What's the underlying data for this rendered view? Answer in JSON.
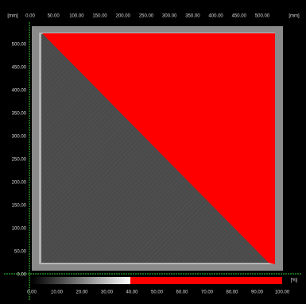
{
  "top_axis": {
    "unit_left": "[mm]",
    "unit_right": "[mm]",
    "ticks": [
      "0.00",
      "50.00",
      "100.00",
      "150.00",
      "200.00",
      "250.00",
      "300.00",
      "350.00",
      "400.00",
      "450.00",
      "500.00"
    ]
  },
  "left_axis": {
    "ticks": [
      "500.00",
      "450.00",
      "400.00",
      "350.00",
      "300.00",
      "250.00",
      "200.00",
      "150.00",
      "100.00",
      "50.00",
      "0.00"
    ]
  },
  "colorbar": {
    "unit": "[%]",
    "ticks": [
      "0.00",
      "10.00",
      "20.00",
      "30.00",
      "40.00",
      "50.00",
      "60.00",
      "70.00",
      "80.00",
      "90.00",
      "100.00"
    ]
  }
}
